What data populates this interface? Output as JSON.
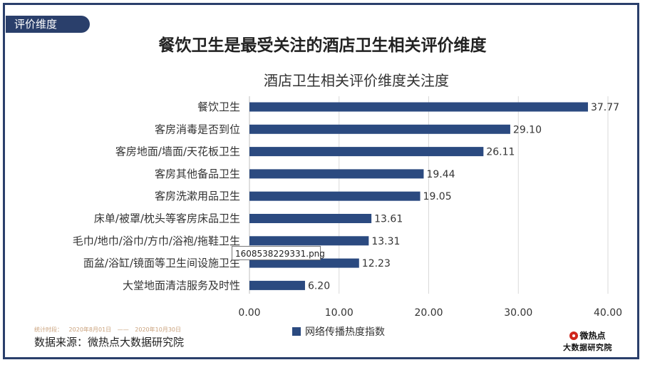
{
  "section_tag": "评价维度",
  "headline": "餐饮卫生是最受关注的酒店卫生相关评价维度",
  "tooltip_text": "1608538229331.png",
  "period": {
    "label": "统计时段：",
    "start": "2020年8月01日",
    "dash": "——",
    "end": "2020年10月30日"
  },
  "source": "数据来源：微热点大数据研究院",
  "logo": {
    "top": "微热点",
    "bottom": "大数据研究院"
  },
  "colors": {
    "bar": "#2b4a80",
    "frame": "#2a3f6b"
  },
  "chart_data": {
    "type": "bar",
    "orientation": "horizontal",
    "title": "酒店卫生相关评价维度关注度",
    "categories": [
      "餐饮卫生",
      "客房消毒是否到位",
      "客房地面/墙面/天花板卫生",
      "客房其他备品卫生",
      "客房洗漱用品卫生",
      "床单/被罩/枕头等客房床品卫生",
      "毛巾/地巾/浴巾/方巾/浴袍/拖鞋卫生",
      "面盆/浴缸/镜面等卫生间设施卫生",
      "大堂地面清洁服务及时性"
    ],
    "series": [
      {
        "name": "网络传播热度指数",
        "values": [
          37.77,
          29.1,
          26.11,
          19.44,
          19.05,
          13.61,
          13.31,
          12.23,
          6.2
        ],
        "labels": [
          "37.77",
          "29.10",
          "26.11",
          "19.44",
          "19.05",
          "13.61",
          "13.31",
          "12.23",
          "6.20"
        ]
      }
    ],
    "xlim": [
      0,
      40
    ],
    "xticks": [
      "0.00",
      "10.00",
      "20.00",
      "30.00",
      "40.00"
    ],
    "grid": "vertical",
    "legend": "bottom"
  }
}
